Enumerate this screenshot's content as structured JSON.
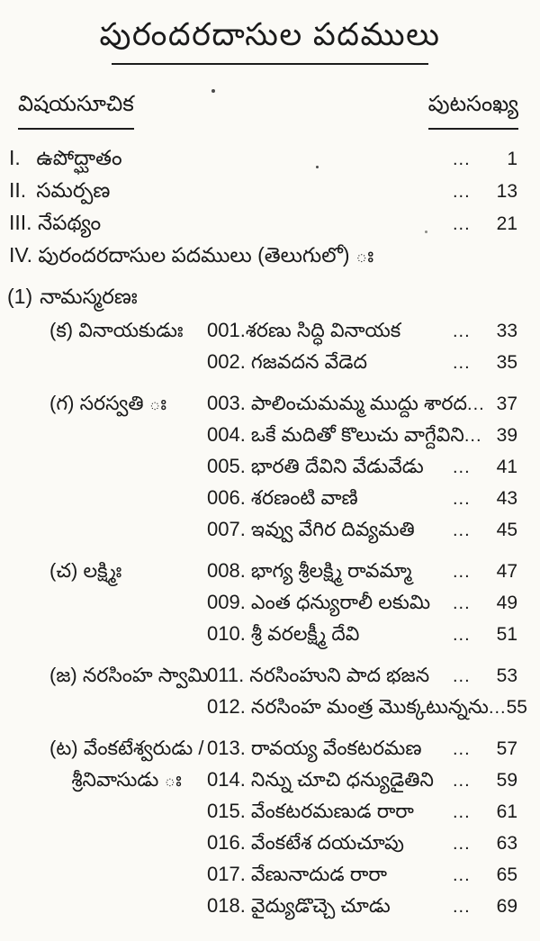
{
  "colors": {
    "paper": "#fbfaf6",
    "ink": "#1a1a1a"
  },
  "title": "పురందరదాసుల పదములు",
  "toc_header": {
    "contents_label": "విషయసూచిక",
    "page_number_label": "పుటసంఖ్య"
  },
  "front_matter": [
    {
      "numeral": "I.",
      "label": "ఉపోద్ఘాతం",
      "dots": "...",
      "page": "1"
    },
    {
      "numeral": "II.",
      "label": "సమర్పణ",
      "dots": "...",
      "page": "13"
    },
    {
      "numeral": "III.",
      "label": "నేపథ్యం",
      "dots": "...",
      "page": "21"
    },
    {
      "numeral": "IV.",
      "label": "పురందరదాసుల పదములు (తెలుగులో) ః",
      "dots": "",
      "page": ""
    }
  ],
  "section": {
    "number": "(1)",
    "title": "నామస్మరణః"
  },
  "songs": [
    {
      "label": "(క) వినాయకుడుః",
      "text": "001.శరణు సిద్ధి వినాయక",
      "dots": "...",
      "page": "33"
    },
    {
      "label": "",
      "text": "002. గజవదన వేడెద",
      "dots": "...",
      "page": "35"
    },
    {
      "label": "(గ) సరస్వతి ః",
      "text": "003. పాలించుమమ్మ ముద్దు శారద",
      "dots": "...",
      "page": "37"
    },
    {
      "label": "",
      "text": "004. ఒకే మదితో కొలుచు వాగ్దేవిని",
      "dots": "...",
      "page": "39"
    },
    {
      "label": "",
      "text": "005. భారతి దేవిని వేడువేడు",
      "dots": "...",
      "page": "41"
    },
    {
      "label": "",
      "text": "006. శరణంటి వాణి",
      "dots": "...",
      "page": "43"
    },
    {
      "label": "",
      "text": "007. ఇవ్వు వేగిర దివ్యమతి",
      "dots": "...",
      "page": "45"
    },
    {
      "label": "(చ) లక్ష్మిః",
      "text": "008. భాగ్య శ్రీలక్ష్మి రావమ్మా",
      "dots": "...",
      "page": "47"
    },
    {
      "label": "",
      "text": "009. ఎంత ధన్యురాలీ లకుమి",
      "dots": "...",
      "page": "49"
    },
    {
      "label": "",
      "text": "010. శ్రీ వరలక్ష్మీ దేవి",
      "dots": "...",
      "page": "51"
    },
    {
      "label": "(జ) నరసింహ స్వామి",
      "text": "011. నరసింహుని పాద భజన",
      "dots": "...",
      "page": "53"
    },
    {
      "label": "",
      "text": "012. నరసింహ మంత్ర మొక్కటున్నను",
      "dots": "...",
      "page": "55"
    },
    {
      "label": "(ట) వేంకటేశ్వరుడు /",
      "text": "013. రావయ్య వేంకటరమణ",
      "dots": "...",
      "page": "57"
    },
    {
      "label": "    శ్రీనివాసుడు ః",
      "text": "014. నిన్ను చూచి ధన్యుడైతిని",
      "dots": "...",
      "page": "59"
    },
    {
      "label": "",
      "text": "015. వేంకటరమణుడ రారా",
      "dots": "...",
      "page": "61"
    },
    {
      "label": "",
      "text": "016. వేంకటేశ దయచూపు",
      "dots": "...",
      "page": "63"
    },
    {
      "label": "",
      "text": "017. వేణునాదుడ రారా",
      "dots": "...",
      "page": "65"
    },
    {
      "label": "",
      "text": "018. వైద్యుడొచ్చె చూడు",
      "dots": "...",
      "page": "69"
    }
  ]
}
